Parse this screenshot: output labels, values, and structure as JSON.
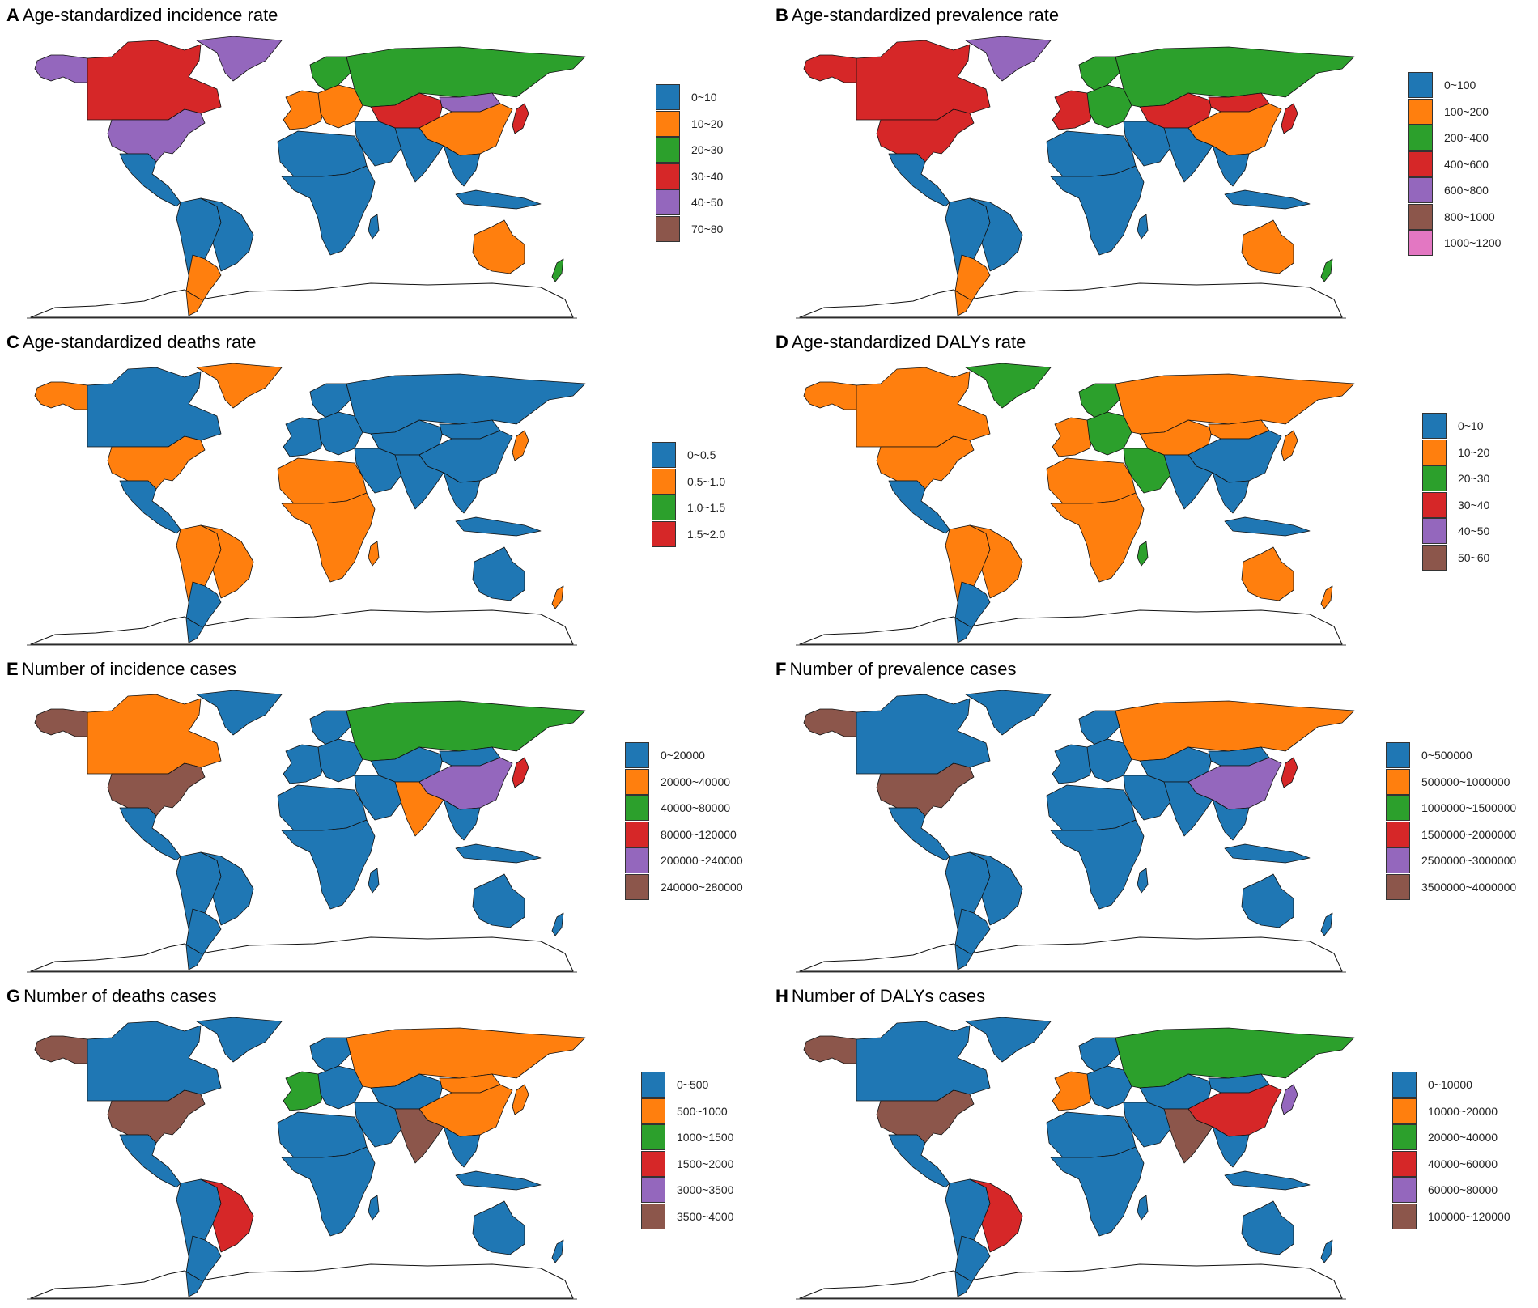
{
  "palette": {
    "blue": "#1f77b4",
    "orange": "#ff7f0e",
    "green": "#2ca02c",
    "red": "#d62728",
    "purple": "#9467bd",
    "brown": "#8c564b",
    "pink": "#e377c2"
  },
  "panels": [
    {
      "letter": "A",
      "title": "Age-standardized incidence rate",
      "legend": [
        {
          "label": "0~10",
          "color": "#1f77b4"
        },
        {
          "label": "10~20",
          "color": "#ff7f0e"
        },
        {
          "label": "20~30",
          "color": "#2ca02c"
        },
        {
          "label": "30~40",
          "color": "#d62728"
        },
        {
          "label": "40~50",
          "color": "#9467bd"
        },
        {
          "label": "70~80",
          "color": "#8c564b"
        }
      ],
      "regions": {
        "alaska": "#9467bd",
        "canada": "#d62728",
        "greenland": "#9467bd",
        "usa": "#9467bd",
        "mexico_central": "#1f77b4",
        "south_america": "#1f77b4",
        "chile_argentina": "#ff7f0e",
        "brazil": "#1f77b4",
        "western_europe": "#ff7f0e",
        "scandinavia": "#2ca02c",
        "eastern_europe": "#ff7f0e",
        "russia": "#2ca02c",
        "central_asia": "#d62728",
        "mongolia": "#9467bd",
        "china": "#ff7f0e",
        "japan": "#d62728",
        "middle_east": "#1f77b4",
        "india": "#1f77b4",
        "southeast_asia": "#1f77b4",
        "north_africa": "#1f77b4",
        "subsaharan_africa": "#1f77b4",
        "madagascar": "#1f77b4",
        "australia": "#ff7f0e",
        "new_zealand": "#2ca02c",
        "indonesia": "#1f77b4"
      }
    },
    {
      "letter": "B",
      "title": "Age-standardized prevalence rate",
      "legend": [
        {
          "label": "0~100",
          "color": "#1f77b4"
        },
        {
          "label": "100~200",
          "color": "#ff7f0e"
        },
        {
          "label": "200~400",
          "color": "#2ca02c"
        },
        {
          "label": "400~600",
          "color": "#d62728"
        },
        {
          "label": "600~800",
          "color": "#9467bd"
        },
        {
          "label": "800~1000",
          "color": "#8c564b"
        },
        {
          "label": "1000~1200",
          "color": "#e377c2"
        }
      ],
      "regions": {
        "alaska": "#d62728",
        "canada": "#d62728",
        "greenland": "#9467bd",
        "usa": "#d62728",
        "mexico_central": "#1f77b4",
        "south_america": "#1f77b4",
        "chile_argentina": "#ff7f0e",
        "brazil": "#1f77b4",
        "western_europe": "#d62728",
        "scandinavia": "#2ca02c",
        "eastern_europe": "#2ca02c",
        "russia": "#2ca02c",
        "central_asia": "#d62728",
        "mongolia": "#d62728",
        "china": "#ff7f0e",
        "japan": "#d62728",
        "middle_east": "#1f77b4",
        "india": "#1f77b4",
        "southeast_asia": "#1f77b4",
        "north_africa": "#1f77b4",
        "subsaharan_africa": "#1f77b4",
        "madagascar": "#1f77b4",
        "australia": "#ff7f0e",
        "new_zealand": "#2ca02c",
        "indonesia": "#1f77b4"
      }
    },
    {
      "letter": "C",
      "title": "Age-standardized deaths rate",
      "legend": [
        {
          "label": "0~0.5",
          "color": "#1f77b4"
        },
        {
          "label": "0.5~1.0",
          "color": "#ff7f0e"
        },
        {
          "label": "1.0~1.5",
          "color": "#2ca02c"
        },
        {
          "label": "1.5~2.0",
          "color": "#d62728"
        }
      ],
      "regions": {
        "alaska": "#ff7f0e",
        "canada": "#1f77b4",
        "greenland": "#ff7f0e",
        "usa": "#ff7f0e",
        "mexico_central": "#1f77b4",
        "south_america": "#ff7f0e",
        "chile_argentina": "#1f77b4",
        "brazil": "#ff7f0e",
        "western_europe": "#1f77b4",
        "scandinavia": "#1f77b4",
        "eastern_europe": "#1f77b4",
        "russia": "#1f77b4",
        "central_asia": "#1f77b4",
        "mongolia": "#1f77b4",
        "china": "#1f77b4",
        "japan": "#ff7f0e",
        "middle_east": "#1f77b4",
        "india": "#1f77b4",
        "southeast_asia": "#1f77b4",
        "north_africa": "#ff7f0e",
        "subsaharan_africa": "#ff7f0e",
        "madagascar": "#ff7f0e",
        "australia": "#1f77b4",
        "new_zealand": "#ff7f0e",
        "indonesia": "#1f77b4"
      }
    },
    {
      "letter": "D",
      "title": "Age-standardized DALYs rate",
      "legend": [
        {
          "label": "0~10",
          "color": "#1f77b4"
        },
        {
          "label": "10~20",
          "color": "#ff7f0e"
        },
        {
          "label": "20~30",
          "color": "#2ca02c"
        },
        {
          "label": "30~40",
          "color": "#d62728"
        },
        {
          "label": "40~50",
          "color": "#9467bd"
        },
        {
          "label": "50~60",
          "color": "#8c564b"
        }
      ],
      "regions": {
        "alaska": "#ff7f0e",
        "canada": "#ff7f0e",
        "greenland": "#2ca02c",
        "usa": "#ff7f0e",
        "mexico_central": "#1f77b4",
        "south_america": "#ff7f0e",
        "chile_argentina": "#1f77b4",
        "brazil": "#ff7f0e",
        "western_europe": "#ff7f0e",
        "scandinavia": "#2ca02c",
        "eastern_europe": "#2ca02c",
        "russia": "#ff7f0e",
        "central_asia": "#ff7f0e",
        "mongolia": "#ff7f0e",
        "china": "#1f77b4",
        "japan": "#ff7f0e",
        "middle_east": "#2ca02c",
        "india": "#1f77b4",
        "southeast_asia": "#1f77b4",
        "north_africa": "#ff7f0e",
        "subsaharan_africa": "#ff7f0e",
        "madagascar": "#2ca02c",
        "australia": "#ff7f0e",
        "new_zealand": "#ff7f0e",
        "indonesia": "#1f77b4"
      }
    },
    {
      "letter": "E",
      "title": "Number of incidence cases",
      "legend": [
        {
          "label": "0~20000",
          "color": "#1f77b4"
        },
        {
          "label": "20000~40000",
          "color": "#ff7f0e"
        },
        {
          "label": "40000~80000",
          "color": "#2ca02c"
        },
        {
          "label": "80000~120000",
          "color": "#d62728"
        },
        {
          "label": "200000~240000",
          "color": "#9467bd"
        },
        {
          "label": "240000~280000",
          "color": "#8c564b"
        }
      ],
      "regions": {
        "alaska": "#8c564b",
        "canada": "#ff7f0e",
        "greenland": "#1f77b4",
        "usa": "#8c564b",
        "mexico_central": "#1f77b4",
        "south_america": "#1f77b4",
        "chile_argentina": "#1f77b4",
        "brazil": "#1f77b4",
        "western_europe": "#1f77b4",
        "scandinavia": "#1f77b4",
        "eastern_europe": "#1f77b4",
        "russia": "#2ca02c",
        "central_asia": "#1f77b4",
        "mongolia": "#1f77b4",
        "china": "#9467bd",
        "japan": "#d62728",
        "middle_east": "#1f77b4",
        "india": "#ff7f0e",
        "southeast_asia": "#1f77b4",
        "north_africa": "#1f77b4",
        "subsaharan_africa": "#1f77b4",
        "madagascar": "#1f77b4",
        "australia": "#1f77b4",
        "new_zealand": "#1f77b4",
        "indonesia": "#1f77b4"
      }
    },
    {
      "letter": "F",
      "title": "Number of prevalence cases",
      "legend": [
        {
          "label": "0~500000",
          "color": "#1f77b4"
        },
        {
          "label": "500000~1000000",
          "color": "#ff7f0e"
        },
        {
          "label": "1000000~1500000",
          "color": "#2ca02c"
        },
        {
          "label": "1500000~2000000",
          "color": "#d62728"
        },
        {
          "label": "2500000~3000000",
          "color": "#9467bd"
        },
        {
          "label": "3500000~4000000",
          "color": "#8c564b"
        }
      ],
      "regions": {
        "alaska": "#8c564b",
        "canada": "#1f77b4",
        "greenland": "#1f77b4",
        "usa": "#8c564b",
        "mexico_central": "#1f77b4",
        "south_america": "#1f77b4",
        "chile_argentina": "#1f77b4",
        "brazil": "#1f77b4",
        "western_europe": "#1f77b4",
        "scandinavia": "#1f77b4",
        "eastern_europe": "#1f77b4",
        "russia": "#ff7f0e",
        "central_asia": "#1f77b4",
        "mongolia": "#1f77b4",
        "china": "#9467bd",
        "japan": "#d62728",
        "middle_east": "#1f77b4",
        "india": "#1f77b4",
        "southeast_asia": "#1f77b4",
        "north_africa": "#1f77b4",
        "subsaharan_africa": "#1f77b4",
        "madagascar": "#1f77b4",
        "australia": "#1f77b4",
        "new_zealand": "#1f77b4",
        "indonesia": "#1f77b4"
      }
    },
    {
      "letter": "G",
      "title": "Number of deaths cases",
      "legend": [
        {
          "label": "0~500",
          "color": "#1f77b4"
        },
        {
          "label": "500~1000",
          "color": "#ff7f0e"
        },
        {
          "label": "1000~1500",
          "color": "#2ca02c"
        },
        {
          "label": "1500~2000",
          "color": "#d62728"
        },
        {
          "label": "3000~3500",
          "color": "#9467bd"
        },
        {
          "label": "3500~4000",
          "color": "#8c564b"
        }
      ],
      "regions": {
        "alaska": "#8c564b",
        "canada": "#1f77b4",
        "greenland": "#1f77b4",
        "usa": "#8c564b",
        "mexico_central": "#1f77b4",
        "south_america": "#1f77b4",
        "chile_argentina": "#1f77b4",
        "brazil": "#d62728",
        "western_europe": "#2ca02c",
        "scandinavia": "#1f77b4",
        "eastern_europe": "#1f77b4",
        "russia": "#ff7f0e",
        "central_asia": "#1f77b4",
        "mongolia": "#ff7f0e",
        "china": "#ff7f0e",
        "japan": "#ff7f0e",
        "middle_east": "#1f77b4",
        "india": "#8c564b",
        "southeast_asia": "#1f77b4",
        "north_africa": "#1f77b4",
        "subsaharan_africa": "#1f77b4",
        "madagascar": "#1f77b4",
        "australia": "#1f77b4",
        "new_zealand": "#1f77b4",
        "indonesia": "#1f77b4"
      }
    },
    {
      "letter": "H",
      "title": "Number of DALYs cases",
      "legend": [
        {
          "label": "0~10000",
          "color": "#1f77b4"
        },
        {
          "label": "10000~20000",
          "color": "#ff7f0e"
        },
        {
          "label": "20000~40000",
          "color": "#2ca02c"
        },
        {
          "label": "40000~60000",
          "color": "#d62728"
        },
        {
          "label": "60000~80000",
          "color": "#9467bd"
        },
        {
          "label": "100000~120000",
          "color": "#8c564b"
        }
      ],
      "regions": {
        "alaska": "#8c564b",
        "canada": "#1f77b4",
        "greenland": "#1f77b4",
        "usa": "#8c564b",
        "mexico_central": "#1f77b4",
        "south_america": "#1f77b4",
        "chile_argentina": "#1f77b4",
        "brazil": "#d62728",
        "western_europe": "#ff7f0e",
        "scandinavia": "#1f77b4",
        "eastern_europe": "#1f77b4",
        "russia": "#2ca02c",
        "central_asia": "#1f77b4",
        "mongolia": "#1f77b4",
        "china": "#d62728",
        "japan": "#9467bd",
        "middle_east": "#1f77b4",
        "india": "#8c564b",
        "southeast_asia": "#1f77b4",
        "north_africa": "#1f77b4",
        "subsaharan_africa": "#1f77b4",
        "madagascar": "#1f77b4",
        "australia": "#1f77b4",
        "new_zealand": "#1f77b4",
        "indonesia": "#1f77b4"
      }
    }
  ]
}
